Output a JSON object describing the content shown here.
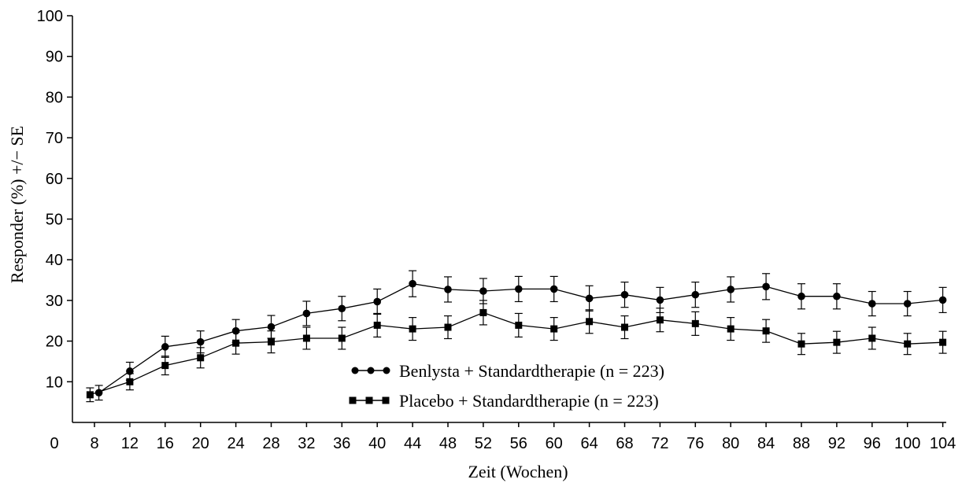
{
  "chart_data": {
    "type": "line",
    "xlabel": "Zeit (Wochen)",
    "ylabel": "Responder (%) +/− SE",
    "xlim": [
      0,
      104
    ],
    "ylim": [
      0,
      100
    ],
    "x_ticks": [
      "0",
      "8",
      "12",
      "16",
      "20",
      "24",
      "28",
      "32",
      "36",
      "40",
      "44",
      "48",
      "52",
      "56",
      "60",
      "64",
      "68",
      "72",
      "76",
      "80",
      "84",
      "88",
      "92",
      "96",
      "100",
      "104"
    ],
    "y_ticks": [
      "10",
      "20",
      "30",
      "40",
      "50",
      "60",
      "70",
      "80",
      "90",
      "100"
    ],
    "x": [
      8,
      12,
      16,
      20,
      24,
      28,
      32,
      36,
      40,
      44,
      48,
      52,
      56,
      60,
      64,
      68,
      72,
      76,
      80,
      84,
      88,
      92,
      96,
      100,
      104
    ],
    "grid": false,
    "legend_position": "bottom-center",
    "series": [
      {
        "name": "Benlysta + Standardtherapie (n = 223)",
        "marker": "circle",
        "first_point": {
          "x": 8.5,
          "y": 7.3,
          "se": 1.8
        },
        "values": [
          7.3,
          12.6,
          18.6,
          19.8,
          22.5,
          23.5,
          26.8,
          28.0,
          29.7,
          34.1,
          32.7,
          32.3,
          32.8,
          32.8,
          30.5,
          31.4,
          30.1,
          31.4,
          32.7,
          33.4,
          31.0,
          31.0,
          29.2,
          29.2,
          30.1
        ],
        "se": [
          1.8,
          2.2,
          2.6,
          2.7,
          2.8,
          2.8,
          3.0,
          3.0,
          3.1,
          3.2,
          3.1,
          3.1,
          3.1,
          3.1,
          3.1,
          3.1,
          3.1,
          3.1,
          3.1,
          3.2,
          3.1,
          3.1,
          3.0,
          3.0,
          3.1
        ]
      },
      {
        "name": "Placebo + Standardtherapie (n = 223)",
        "marker": "square",
        "first_point": {
          "x": 7.5,
          "y": 6.8,
          "se": 1.7
        },
        "values": [
          6.8,
          10.0,
          14.0,
          15.9,
          19.5,
          19.8,
          20.7,
          20.7,
          23.9,
          23.0,
          23.4,
          27.0,
          23.9,
          23.0,
          24.8,
          23.4,
          25.2,
          24.3,
          23.0,
          22.5,
          19.3,
          19.7,
          20.7,
          19.3,
          19.7
        ],
        "se": [
          1.7,
          2.0,
          2.3,
          2.5,
          2.7,
          2.7,
          2.7,
          2.7,
          2.9,
          2.8,
          2.8,
          3.0,
          2.9,
          2.8,
          2.9,
          2.8,
          2.9,
          2.9,
          2.8,
          2.8,
          2.6,
          2.7,
          2.7,
          2.6,
          2.7
        ]
      }
    ]
  }
}
